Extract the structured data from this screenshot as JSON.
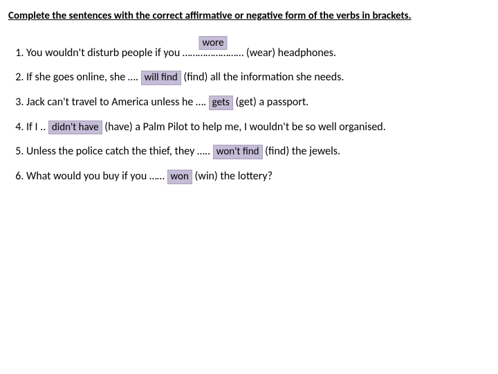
{
  "instruction": "Complete the sentences with the correct affirmative or negative form of the verbs in brackets.",
  "colors": {
    "answer_bg": "#c5bdd7",
    "page_bg": "#ffffff",
    "text": "#000000"
  },
  "font": {
    "family": "Calibri",
    "body_size_pt": 12,
    "instruction_size_pt": 11,
    "instruction_bold": true,
    "instruction_underline": true
  },
  "sentences": [
    {
      "pre": "You wouldn't disturb people if you ",
      "dots": "……………………",
      "answer": "wore",
      "answer_pos": "over",
      "post": " (wear) headphones."
    },
    {
      "pre": "If she goes online, she …. ",
      "dots": "……………..",
      "answer": "will find",
      "answer_pos": "inline",
      "post": " (find) all the information she needs."
    },
    {
      "pre": "Jack can't travel to America unless he …. ",
      "dots": "……….…",
      "answer": "gets",
      "answer_pos": "inline",
      "post": " (get) a passport."
    },
    {
      "pre": "If I .. ",
      "dots": "…………….",
      "answer": "didn't have",
      "answer_pos": "inline",
      "post": " (have) a Palm Pilot to help me, I wouldn't be so well organised."
    },
    {
      "pre": "Unless the police catch the thief, they ….. ",
      "dots": "…………..",
      "answer": "won't find",
      "answer_pos": "inline",
      "post": " (find) the jewels."
    },
    {
      "pre": "What would you buy if you …… ",
      "dots": "……….……",
      "answer": "won",
      "answer_pos": "inline",
      "post": " (win) the lottery?"
    }
  ]
}
